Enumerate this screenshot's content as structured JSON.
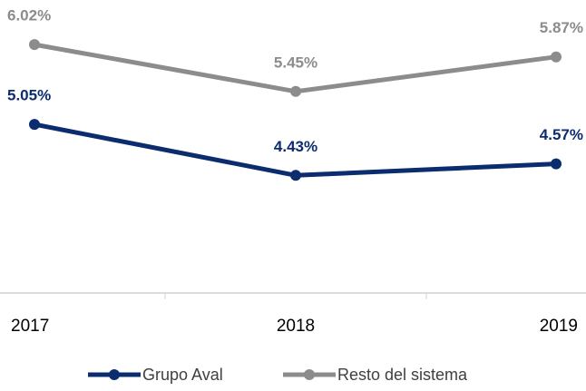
{
  "chart_data": {
    "type": "line",
    "categories": [
      "2017",
      "2018",
      "2019"
    ],
    "series": [
      {
        "name": "Grupo Aval",
        "color": "#0b2c6e",
        "values": [
          5.05,
          4.43,
          4.57
        ],
        "value_labels": [
          "5.05%",
          "4.43%",
          "4.57%"
        ]
      },
      {
        "name": "Resto del sistema",
        "color": "#8c8c8c",
        "values": [
          6.02,
          5.45,
          5.87
        ],
        "value_labels": [
          "6.02%",
          "5.45%",
          "5.87%"
        ]
      }
    ],
    "ylim": [
      3,
      6.6
    ],
    "legend": "bottom"
  }
}
